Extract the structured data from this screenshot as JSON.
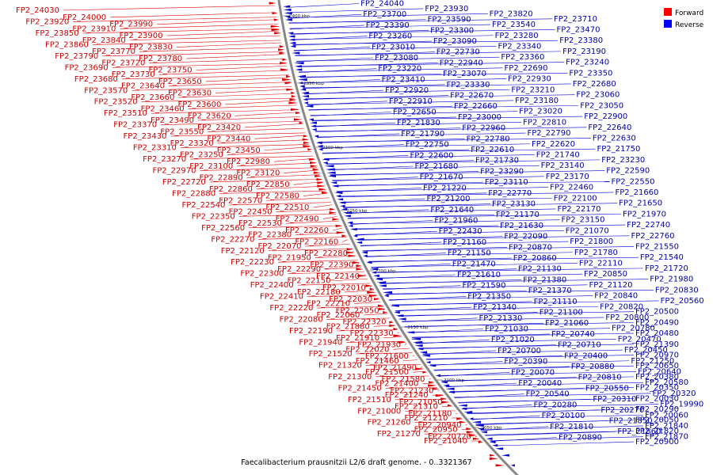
{
  "caption": "Faecalibacterium prausnitzii L2/6 draft genome. - 0..3321367",
  "legend": [
    {
      "label": "Forward",
      "color": "#ff0000"
    },
    {
      "label": "Reverse",
      "color": "#0000ff"
    }
  ],
  "colors": {
    "forward": "#e00000",
    "reverse": "#0000d0",
    "backbone": "#888888"
  },
  "ticks": [
    "2400 kbp",
    "2350 kbp",
    "2300 kbp",
    "2250 kbp",
    "2200 kbp",
    "2150 kbp",
    "2100 kbp",
    "2050 kbp"
  ],
  "forward_labels": [
    "FP2_24030",
    "FP2_24000",
    "FP2_23990",
    "FP2_23920",
    "FP2_23910",
    "FP2_23900",
    "FP2_23850",
    "FP2_23840",
    "FP2_23830",
    "FP2_23860",
    "FP2_23770",
    "FP2_23780",
    "FP2_23790",
    "FP2_23720",
    "FP2_23750",
    "FP2_23690",
    "FP2_23730",
    "FP2_23650",
    "FP2_23680",
    "FP2_23640",
    "FP2_23630",
    "FP2_23570",
    "FP2_23660",
    "FP2_23600",
    "FP2_23520",
    "FP2_23460",
    "FP2_23620",
    "FP2_23510",
    "FP2_23490",
    "FP2_23420",
    "FP2_23370",
    "FP2_23550",
    "FP2_23440",
    "FP2_23430",
    "FP2_23320",
    "FP2_23450",
    "FP2_23310",
    "FP2_23250",
    "FP2_22980",
    "FP2_23270",
    "FP2_23100",
    "FP2_23120",
    "FP2_22970",
    "FP2_22890",
    "FP2_22850",
    "FP2_22720",
    "FP2_22860",
    "FP2_22580",
    "FP2_22880",
    "FP2_22570",
    "FP2_22510",
    "FP2_22540",
    "FP2_22450",
    "FP2_22490",
    "FP2_22350",
    "FP2_22530",
    "FP2_22260",
    "FP2_22560",
    "FP2_22380",
    "FP2_22160",
    "FP2_22270",
    "FP2_22070",
    "FP2_22280",
    "FP2_22120",
    "FP2_21950",
    "FP2_22390",
    "FP2_22230",
    "FP2_22290",
    "FP2_22140",
    "FP2_22300",
    "FP2_22150",
    "FP2_22010",
    "FP2_22400",
    "FP2_22180",
    "FP2_22030",
    "FP2_22410",
    "FP2_22210",
    "FP2_22050",
    "FP2_22220",
    "FP2_22060",
    "FP2_22320",
    "FP2_22080",
    "FP2_21880",
    "FP2_22330",
    "FP2_22190",
    "FP2_21910",
    "FP2_21930",
    "FP2_21940",
    "FP2_22020",
    "FP2_21600",
    "FP2_21520",
    "FP2_21460",
    "FP2_21490",
    "FP2_21320",
    "FP2_21500",
    "FP2_21580",
    "FP2_21300",
    "FP2_21400",
    "FP2_21230",
    "FP2_21450",
    "FP2_21240",
    "FP2_21050",
    "FP2_21510",
    "FP2_21310",
    "FP2_21180",
    "FP2_21000",
    "FP2_21210",
    "FP2_20940",
    "FP2_21260",
    "FP2_20950",
    "FP2_20720",
    "FP2_21270",
    "FP2_21040"
  ],
  "reverse_labels": [
    "FP2_24040",
    "FP2_23930",
    "FP2_23820",
    "FP2_23710",
    "FP2_23700",
    "FP2_23590",
    "FP2_23540",
    "FP2_23470",
    "FP2_23390",
    "FP2_23300",
    "FP2_23280",
    "FP2_23380",
    "FP2_23260",
    "FP2_23090",
    "FP2_23340",
    "FP2_23190",
    "FP2_23010",
    "FP2_22730",
    "FP2_23360",
    "FP2_23240",
    "FP2_23080",
    "FP2_22940",
    "FP2_22690",
    "FP2_23350",
    "FP2_23220",
    "FP2_23070",
    "FP2_22930",
    "FP2_22680",
    "FP2_23410",
    "FP2_23330",
    "FP2_23210",
    "FP2_23060",
    "FP2_22920",
    "FP2_22670",
    "FP2_23180",
    "FP2_23050",
    "FP2_22910",
    "FP2_22660",
    "FP2_23020",
    "FP2_22900",
    "FP2_22650",
    "FP2_23000",
    "FP2_22810",
    "FP2_22640",
    "FP2_21830",
    "FP2_22960",
    "FP2_22790",
    "FP2_22630",
    "FP2_21790",
    "FP2_22780",
    "FP2_22620",
    "FP2_21750",
    "FP2_22750",
    "FP2_22610",
    "FP2_21740",
    "FP2_23230",
    "FP2_22600",
    "FP2_21730",
    "FP2_23140",
    "FP2_22590",
    "FP2_21680",
    "FP2_23290",
    "FP2_23170",
    "FP2_22550",
    "FP2_21670",
    "FP2_23110",
    "FP2_22460",
    "FP2_21660",
    "FP2_21220",
    "FP2_22770",
    "FP2_22100",
    "FP2_21650",
    "FP2_21200",
    "FP2_23130",
    "FP2_22170",
    "FP2_21970",
    "FP2_21640",
    "FP2_21170",
    "FP2_23150",
    "FP2_22740",
    "FP2_21960",
    "FP2_21630",
    "FP2_21070",
    "FP2_22760",
    "FP2_22430",
    "FP2_22090",
    "FP2_21800",
    "FP2_21550",
    "FP2_21160",
    "FP2_20870",
    "FP2_21780",
    "FP2_21540",
    "FP2_21150",
    "FP2_20860",
    "FP2_22110",
    "FP2_21720",
    "FP2_21470",
    "FP2_21130",
    "FP2_20850",
    "FP2_21980",
    "FP2_21610",
    "FP2_21380",
    "FP2_21120",
    "FP2_20830",
    "FP2_21590",
    "FP2_21370",
    "FP2_20840",
    "FP2_20560",
    "FP2_21350",
    "FP2_21110",
    "FP2_20820",
    "FP2_20500",
    "FP2_21340",
    "FP2_21100",
    "FP2_20800",
    "FP2_20490",
    "FP2_21330",
    "FP2_21060",
    "FP2_20780",
    "FP2_20480",
    "FP2_21030",
    "FP2_20740",
    "FP2_20470",
    "FP2_21390",
    "FP2_21020",
    "FP2_20710",
    "FP2_20450",
    "FP2_20970",
    "FP2_20700",
    "FP2_20400",
    "FP2_21250",
    "FP2_20650",
    "FP2_20390",
    "FP2_20880",
    "FP2_20640",
    "FP2_20380",
    "FP2_20070",
    "FP2_20810",
    "FP2_20580",
    "FP2_20350",
    "FP2_20040",
    "FP2_20550",
    "FP2_20320",
    "FP2_20030",
    "FP2_20540",
    "FP2_20310",
    "FP2_19990",
    "FP2_20290",
    "FP2_20280",
    "FP2_20270",
    "FP2_20060",
    "FP2_20050",
    "FP2_20100",
    "FP2_21850",
    "FP2_21840",
    "FP2_21820",
    "FP2_21810",
    "FP2_21860",
    "FP2_21870",
    "FP2_20900",
    "FP2_20890"
  ]
}
